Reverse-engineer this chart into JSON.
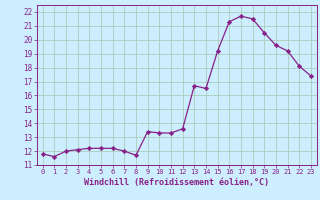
{
  "x": [
    0,
    1,
    2,
    3,
    4,
    5,
    6,
    7,
    8,
    9,
    10,
    11,
    12,
    13,
    14,
    15,
    16,
    17,
    18,
    19,
    20,
    21,
    22,
    23
  ],
  "y": [
    11.8,
    11.6,
    12.0,
    12.1,
    12.2,
    12.2,
    12.2,
    12.0,
    11.7,
    13.4,
    13.3,
    13.3,
    13.6,
    16.7,
    16.5,
    19.2,
    21.3,
    21.7,
    21.5,
    20.5,
    19.6,
    19.2,
    18.1,
    17.4
  ],
  "line_color": "#882288",
  "marker": "D",
  "marker_size": 2.2,
  "bg_color": "#cceeff",
  "grid_color": "#aaccbb",
  "xlabel": "Windchill (Refroidissement éolien,°C)",
  "xlabel_color": "#882288",
  "tick_color": "#882288",
  "ylim": [
    11,
    22.5
  ],
  "xlim": [
    -0.5,
    23.5
  ],
  "yticks": [
    11,
    12,
    13,
    14,
    15,
    16,
    17,
    18,
    19,
    20,
    21,
    22
  ],
  "xticks": [
    0,
    1,
    2,
    3,
    4,
    5,
    6,
    7,
    8,
    9,
    10,
    11,
    12,
    13,
    14,
    15,
    16,
    17,
    18,
    19,
    20,
    21,
    22,
    23
  ],
  "xtick_labels": [
    "0",
    "1",
    "2",
    "3",
    "4",
    "5",
    "6",
    "7",
    "8",
    "9",
    "10",
    "11",
    "12",
    "13",
    "14",
    "15",
    "16",
    "17",
    "18",
    "19",
    "20",
    "21",
    "22",
    "23"
  ]
}
